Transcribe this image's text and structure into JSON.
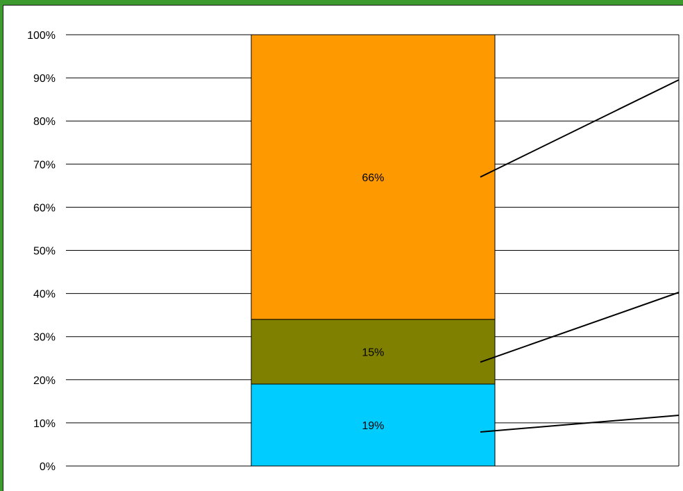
{
  "colors": {
    "frame_border": "#3d9a2e",
    "gridline": "#000000"
  },
  "chart_data": {
    "type": "bar",
    "stacked": true,
    "categories": [
      ""
    ],
    "series": [
      {
        "values": [
          19
        ],
        "label": "19%",
        "color": "#00ccff"
      },
      {
        "values": [
          15
        ],
        "label": "15%",
        "color": "#808000"
      },
      {
        "values": [
          66
        ],
        "label": "66%",
        "color": "#ff9900"
      }
    ],
    "y_ticks": [
      "0%",
      "10%",
      "20%",
      "30%",
      "40%",
      "50%",
      "60%",
      "70%",
      "80%",
      "90%",
      "100%"
    ],
    "ylim": [
      0,
      100
    ],
    "grid": true,
    "legend": "none",
    "annotations": [
      "leader-line",
      "leader-line",
      "leader-line"
    ]
  }
}
